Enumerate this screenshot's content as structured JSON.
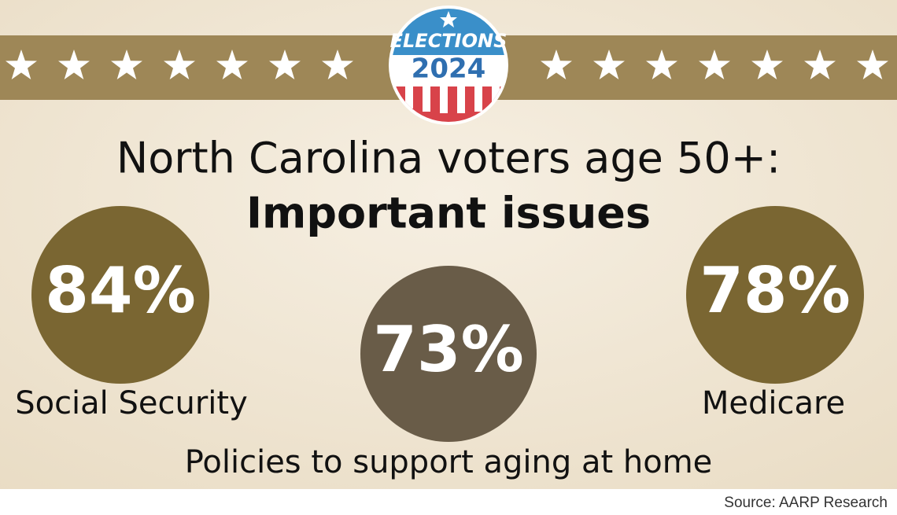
{
  "badge": {
    "line1": "ELECTIONS",
    "line2": "2024"
  },
  "title": {
    "line1": "North Carolina voters age 50+:",
    "line2": "Important issues"
  },
  "items": [
    {
      "value_label": "84%",
      "label": "Social Security"
    },
    {
      "value_label": "73%",
      "label": "Policies to support aging at home"
    },
    {
      "value_label": "78%",
      "label": "Medicare"
    }
  ],
  "source": "Source: AARP Research"
}
